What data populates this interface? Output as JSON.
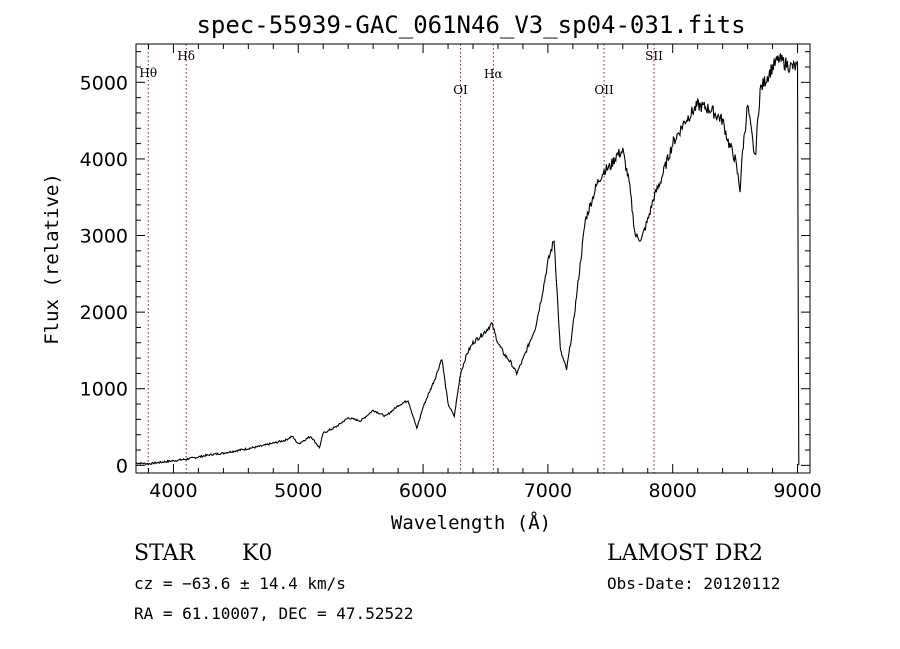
{
  "chart_data": {
    "type": "line",
    "title": "spec-55939-GAC_061N46_V3_sp04-031.fits",
    "xlabel": "Wavelength (Å)",
    "ylabel": "Flux (relative)",
    "xlim": [
      3700,
      9100
    ],
    "ylim": [
      -100,
      5500
    ],
    "x_ticks": [
      4000,
      5000,
      6000,
      7000,
      8000,
      9000
    ],
    "y_ticks": [
      0,
      1000,
      2000,
      3000,
      4000,
      5000
    ],
    "grid": false,
    "series": [
      {
        "x": [
          3700,
          3800,
          3900,
          4000,
          4100,
          4200,
          4300,
          4400,
          4500,
          4600,
          4700,
          4800,
          4900,
          4950,
          5000,
          5100,
          5170,
          5200,
          5300,
          5400,
          5500,
          5600,
          5700,
          5800,
          5880,
          5950,
          6000,
          6100,
          6150,
          6200,
          6250,
          6300,
          6350,
          6400,
          6500,
          6550,
          6600,
          6650,
          6700,
          6750,
          6800,
          6900,
          6950,
          7000,
          7050,
          7100,
          7150,
          7200,
          7300,
          7400,
          7450,
          7500,
          7550,
          7600,
          7650,
          7700,
          7750,
          7800,
          7850,
          7900,
          8000,
          8100,
          8200,
          8300,
          8400,
          8450,
          8500,
          8540,
          8560,
          8600,
          8660,
          8700,
          8800,
          8850,
          8900,
          8950,
          9000,
          9010
        ],
        "y": [
          30,
          20,
          40,
          60,
          80,
          110,
          140,
          160,
          190,
          220,
          250,
          290,
          330,
          380,
          280,
          380,
          230,
          420,
          500,
          620,
          580,
          720,
          640,
          780,
          850,
          480,
          760,
          1150,
          1400,
          800,
          640,
          1200,
          1450,
          1600,
          1750,
          1850,
          1600,
          1450,
          1350,
          1200,
          1380,
          1800,
          2200,
          2650,
          2950,
          1500,
          1250,
          1800,
          3200,
          3700,
          3850,
          3900,
          4050,
          4100,
          3700,
          3000,
          2950,
          3200,
          3500,
          3700,
          4200,
          4500,
          4700,
          4650,
          4500,
          4200,
          4000,
          3600,
          4100,
          4700,
          4000,
          4900,
          5200,
          5300,
          5250,
          5200,
          5200,
          0
        ]
      }
    ],
    "line_markers": [
      {
        "label": "Hθ",
        "x": 3798
      },
      {
        "label": "Hδ",
        "x": 4102
      },
      {
        "label": "OI",
        "x": 6300
      },
      {
        "label": "Hα",
        "x": 6563
      },
      {
        "label": "OII",
        "x": 7450
      },
      {
        "label": "SII",
        "x": 7850
      }
    ]
  },
  "info": {
    "class": "STAR",
    "subclass": "K0",
    "cz": "cz = −63.6 ± 14.4 km/s",
    "radec": "RA =  61.10007, DEC =  47.52522",
    "survey": "LAMOST DR2",
    "obsdate": "Obs-Date: 20120112"
  }
}
